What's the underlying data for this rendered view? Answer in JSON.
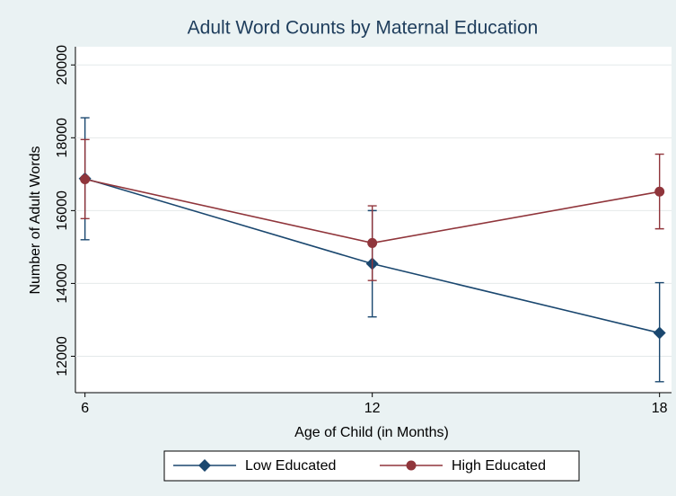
{
  "chart_data": {
    "type": "line",
    "title": "Adult Word Counts by Maternal Education",
    "xlabel": "Age of Child (in Months)",
    "ylabel": "Number of Adult Words",
    "x": [
      6,
      12,
      18
    ],
    "series": [
      {
        "name": "Low Educated",
        "color": "#1a476f",
        "marker": "diamond",
        "values": [
          16880,
          14540,
          12640
        ],
        "lower": [
          15200,
          13080,
          11300
        ],
        "upper": [
          18550,
          16000,
          14020
        ]
      },
      {
        "name": "High Educated",
        "color": "#90353b",
        "marker": "circle",
        "values": [
          16860,
          15110,
          16520
        ],
        "lower": [
          15780,
          14080,
          15500
        ],
        "upper": [
          17950,
          16130,
          17550
        ]
      }
    ],
    "xlim": [
      5.8,
      18.25
    ],
    "xticks": [
      6,
      12,
      18
    ],
    "ylim": [
      11000,
      20500
    ],
    "yticks": [
      12000,
      14000,
      16000,
      18000,
      20000
    ],
    "grid": true,
    "legend": "bottom"
  }
}
